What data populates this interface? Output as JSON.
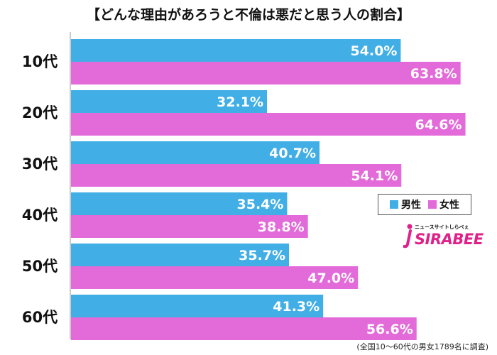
{
  "title": "【どんな理由があろうと不倫は悪だと思う人の割合】",
  "footnote": "(全国10～60代の男女1789名に調査)",
  "legend": {
    "male": "男性",
    "female": "女性"
  },
  "logo": {
    "small_text": "ニュースサイトしらべぇ",
    "main_text": "SIRABEE"
  },
  "colors": {
    "male": "#41aee5",
    "female": "#e36ad9",
    "logo": "#e0218a"
  },
  "chart_data": {
    "type": "bar",
    "orientation": "horizontal",
    "title": "【どんな理由があろうと不倫は悪だと思う人の割合】",
    "categories": [
      "10代",
      "20代",
      "30代",
      "40代",
      "50代",
      "60代"
    ],
    "series": [
      {
        "name": "男性",
        "values": [
          54.0,
          32.1,
          40.7,
          35.4,
          35.7,
          41.3
        ],
        "labels": [
          "54.0%",
          "32.1%",
          "40.7%",
          "35.4%",
          "35.7%",
          "41.3%"
        ]
      },
      {
        "name": "女性",
        "values": [
          63.8,
          64.6,
          54.1,
          38.8,
          47.0,
          56.6
        ],
        "labels": [
          "63.8%",
          "64.6%",
          "54.1%",
          "38.8%",
          "47.0%",
          "56.6%"
        ]
      }
    ],
    "xlim": [
      0,
      100
    ],
    "legend_position": "right",
    "grid": false
  }
}
